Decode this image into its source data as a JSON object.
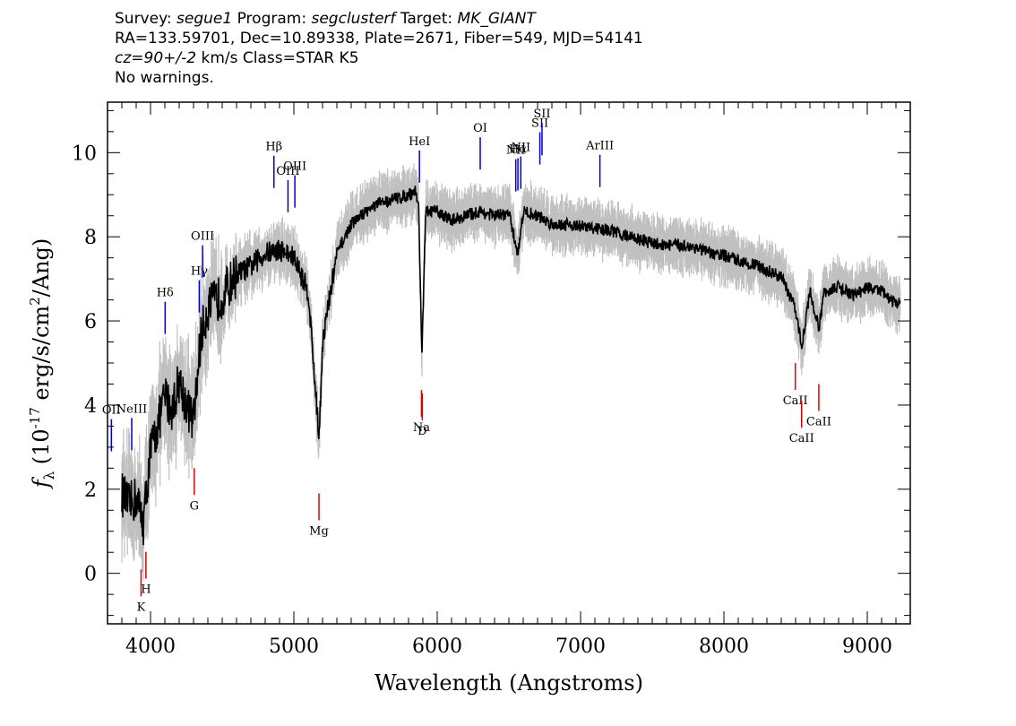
{
  "header": {
    "survey_label": "Survey:",
    "survey_value": "segue1",
    "program_label": "Program:",
    "program_value": "segclusterf",
    "target_label": "Target:",
    "target_value": "MK_GIANT",
    "line2": "RA=133.59701, Dec=10.89338, Plate=2671, Fiber=549, MJD=54141",
    "cz_value": "cz=90+/-2",
    "cz_rest": "km/s Class=STAR K5",
    "line4": "No warnings."
  },
  "chart_data": {
    "type": "line",
    "xlabel": "Wavelength (Angstroms)",
    "ylabel": "f_λ (10^-17 erg/s/cm^2/Ang)",
    "xlim": [
      3700,
      9300
    ],
    "ylim": [
      -1.2,
      11.2
    ],
    "x_ticks": [
      4000,
      5000,
      6000,
      7000,
      8000,
      9000
    ],
    "y_ticks": [
      0,
      2,
      4,
      6,
      8,
      10
    ],
    "colors": {
      "flux": "#000000",
      "error": "#c0c0c0",
      "emission": "#0000cc",
      "absorption": "#dd0000"
    },
    "series": [
      {
        "x": [
          3800,
          3850,
          3900,
          3950,
          4000,
          4050,
          4100,
          4150,
          4200,
          4250,
          4300,
          4350,
          4400,
          4500,
          4600,
          4700,
          4800,
          4900,
          5000,
          5100,
          5150,
          5175,
          5200,
          5300,
          5400,
          5500,
          5600,
          5700,
          5800,
          5850,
          5870,
          5893,
          5920,
          6000,
          6100,
          6200,
          6300,
          6400,
          6500,
          6563,
          6600,
          6700,
          6800,
          6900,
          7000,
          7100,
          7200,
          7300,
          7400,
          7500,
          7600,
          7700,
          7800,
          7900,
          8000,
          8100,
          8200,
          8300,
          8400,
          8498,
          8542,
          8600,
          8662,
          8700,
          8800,
          8900,
          9000,
          9100,
          9200
        ],
        "y": [
          1.9,
          1.6,
          1.8,
          1.2,
          2.9,
          3.5,
          4.2,
          3.9,
          4.6,
          4.0,
          3.6,
          5.6,
          6.3,
          6.6,
          7.1,
          7.3,
          7.6,
          7.7,
          7.5,
          6.7,
          4.4,
          3.2,
          5.5,
          7.6,
          8.3,
          8.6,
          8.8,
          8.9,
          9.0,
          9.1,
          8.7,
          5.2,
          8.6,
          8.6,
          8.4,
          8.5,
          8.6,
          8.5,
          8.55,
          7.6,
          8.6,
          8.5,
          8.3,
          8.3,
          8.25,
          8.2,
          8.15,
          8.05,
          7.95,
          7.85,
          7.8,
          7.8,
          7.75,
          7.6,
          7.55,
          7.45,
          7.35,
          7.2,
          7.05,
          6.3,
          5.4,
          6.7,
          5.8,
          6.7,
          6.8,
          6.6,
          6.8,
          6.7,
          6.4
        ]
      }
    ],
    "emission_lines": [
      {
        "label": "OII",
        "wavelength": 3727
      },
      {
        "label": "NeIII",
        "wavelength": 3869
      },
      {
        "label": "Hδ",
        "wavelength": 4102
      },
      {
        "label": "Hγ",
        "wavelength": 4340
      },
      {
        "label": "OIII",
        "wavelength": 4363
      },
      {
        "label": "Hβ",
        "wavelength": 4861
      },
      {
        "label": "OIII",
        "wavelength": 4959
      },
      {
        "label": "OIII",
        "wavelength": 5007
      },
      {
        "label": "HeI",
        "wavelength": 5876
      },
      {
        "label": "OI",
        "wavelength": 6300
      },
      {
        "label": "NII",
        "wavelength": 6548
      },
      {
        "label": "Hα",
        "wavelength": 6563
      },
      {
        "label": "NII",
        "wavelength": 6583
      },
      {
        "label": "SII",
        "wavelength": 6716
      },
      {
        "label": "SII",
        "wavelength": 6731
      },
      {
        "label": "ArIII",
        "wavelength": 7135
      }
    ],
    "absorption_lines": [
      {
        "label": "K",
        "wavelength": 3934
      },
      {
        "label": "H",
        "wavelength": 3968
      },
      {
        "label": "G",
        "wavelength": 4305
      },
      {
        "label": "Mg",
        "wavelength": 5175
      },
      {
        "label": "Na",
        "wavelength": 5890
      },
      {
        "label": "D",
        "wavelength": 5896
      },
      {
        "label": "CaII",
        "wavelength": 8498
      },
      {
        "label": "CaII",
        "wavelength": 8542
      },
      {
        "label": "CaII",
        "wavelength": 8662
      }
    ],
    "grid": false,
    "legend": "none"
  }
}
